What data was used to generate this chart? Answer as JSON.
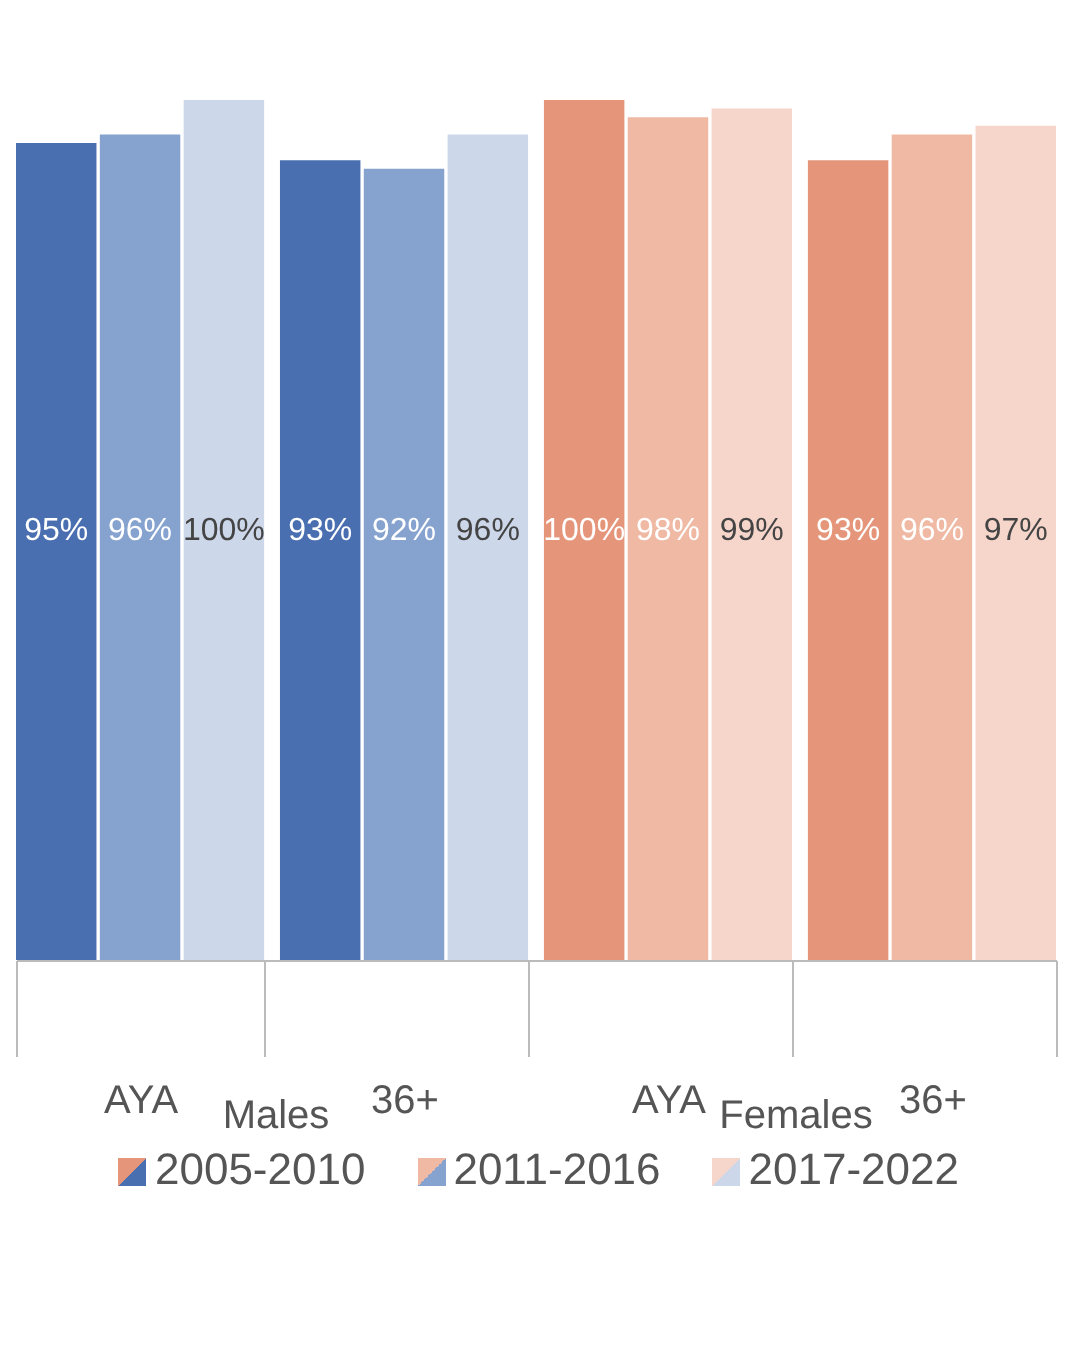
{
  "chart_data": {
    "type": "bar",
    "categories": [
      "AYA",
      "36+",
      "AYA",
      "36+"
    ],
    "annotations": [
      "Males",
      "Females"
    ],
    "series": [
      {
        "name": "2005-2010",
        "color": "#4a6fb0",
        "colors": [
          "#4a6fb0",
          "#4a6fb0",
          "#e5967a",
          "#e5967a"
        ],
        "values": [
          95,
          93,
          100,
          93
        ],
        "value_labels": [
          "95%",
          "93%",
          "100%",
          "93%"
        ]
      },
      {
        "name": "2011-2016",
        "color": "#86a2cf",
        "colors": [
          "#86a2cf",
          "#86a2cf",
          "#efb9a4",
          "#efb9a4"
        ],
        "values": [
          96,
          92,
          98,
          96
        ],
        "value_labels": [
          "96%",
          "92%",
          "98%",
          "96%"
        ]
      },
      {
        "name": "2017-2022",
        "color": "#ccd7ea",
        "colors": [
          "#ccd7ea",
          "#ccd7ea",
          "#f6d6cb",
          "#f6d6cb"
        ],
        "values": [
          100,
          96,
          99,
          97
        ],
        "value_labels": [
          "100%",
          "96%",
          "99%",
          "97%"
        ]
      }
    ],
    "legend": "bottom"
  }
}
